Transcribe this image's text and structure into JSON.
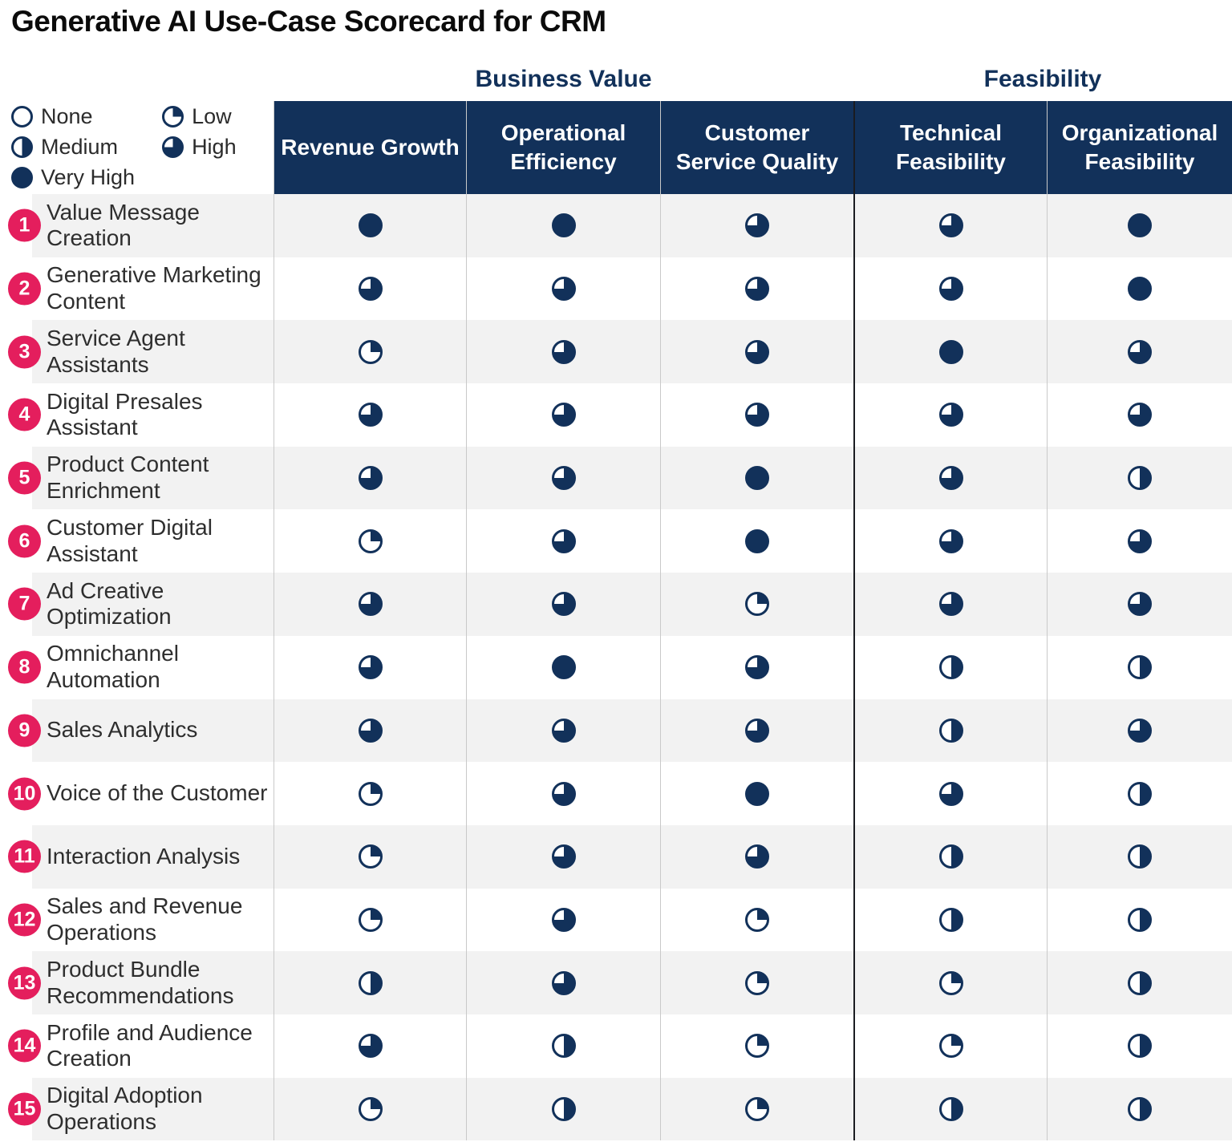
{
  "title": "Generative AI Use-Case Scorecard for CRM",
  "colors": {
    "navy": "#12315a",
    "badge_pink": "#e41e5d",
    "row_stripe": "#f2f2f2",
    "header_text": "#ffffff"
  },
  "legend": {
    "items": [
      {
        "label": "None",
        "level": "none"
      },
      {
        "label": "Low",
        "level": "low"
      },
      {
        "label": "Medium",
        "level": "medium"
      },
      {
        "label": "High",
        "level": "high"
      },
      {
        "label": "Very High",
        "level": "very_high"
      }
    ]
  },
  "groups": [
    {
      "label": "Business Value",
      "span": 3
    },
    {
      "label": "Feasibility",
      "span": 2
    }
  ],
  "columns": [
    "Revenue Growth",
    "Operational Efficiency",
    "Customer Service Quality",
    "Technical Feasibility",
    "Organizational Feasibility"
  ],
  "chart_data": {
    "type": "table",
    "title": "Generative AI Use-Case Scorecard for CRM",
    "rating_scale": [
      "none",
      "low",
      "medium",
      "high",
      "very_high"
    ],
    "column_groups": {
      "Business Value": [
        0,
        1,
        2
      ],
      "Feasibility": [
        3,
        4
      ]
    },
    "columns": [
      "Revenue Growth",
      "Operational Efficiency",
      "Customer Service Quality",
      "Technical Feasibility",
      "Organizational Feasibility"
    ],
    "rows": [
      {
        "num": 1,
        "label": "Value Message Creation",
        "ratings": [
          "very_high",
          "very_high",
          "high",
          "high",
          "very_high"
        ]
      },
      {
        "num": 2,
        "label": "Generative Marketing Content",
        "ratings": [
          "high",
          "high",
          "high",
          "high",
          "very_high"
        ]
      },
      {
        "num": 3,
        "label": "Service Agent Assistants",
        "ratings": [
          "low",
          "high",
          "high",
          "very_high",
          "high"
        ]
      },
      {
        "num": 4,
        "label": "Digital Presales Assistant",
        "ratings": [
          "high",
          "high",
          "high",
          "high",
          "high"
        ]
      },
      {
        "num": 5,
        "label": "Product Content Enrichment",
        "ratings": [
          "high",
          "high",
          "very_high",
          "high",
          "medium"
        ]
      },
      {
        "num": 6,
        "label": "Customer Digital Assistant",
        "ratings": [
          "low",
          "high",
          "very_high",
          "high",
          "high"
        ]
      },
      {
        "num": 7,
        "label": "Ad Creative Optimization",
        "ratings": [
          "high",
          "high",
          "low",
          "high",
          "high"
        ]
      },
      {
        "num": 8,
        "label": "Omnichannel Automation",
        "ratings": [
          "high",
          "very_high",
          "high",
          "medium",
          "medium"
        ]
      },
      {
        "num": 9,
        "label": "Sales Analytics",
        "ratings": [
          "high",
          "high",
          "high",
          "medium",
          "high"
        ]
      },
      {
        "num": 10,
        "label": "Voice of the Customer",
        "ratings": [
          "low",
          "high",
          "very_high",
          "high",
          "medium"
        ]
      },
      {
        "num": 11,
        "label": "Interaction Analysis",
        "ratings": [
          "low",
          "high",
          "high",
          "medium",
          "medium"
        ]
      },
      {
        "num": 12,
        "label": "Sales and Revenue Operations",
        "ratings": [
          "low",
          "high",
          "low",
          "medium",
          "medium"
        ]
      },
      {
        "num": 13,
        "label": "Product Bundle Recommendations",
        "ratings": [
          "medium",
          "high",
          "low",
          "low",
          "medium"
        ]
      },
      {
        "num": 14,
        "label": "Profile and Audience Creation",
        "ratings": [
          "high",
          "medium",
          "low",
          "low",
          "medium"
        ]
      },
      {
        "num": 15,
        "label": "Digital Adoption Operations",
        "ratings": [
          "low",
          "medium",
          "low",
          "medium",
          "medium"
        ]
      }
    ]
  }
}
